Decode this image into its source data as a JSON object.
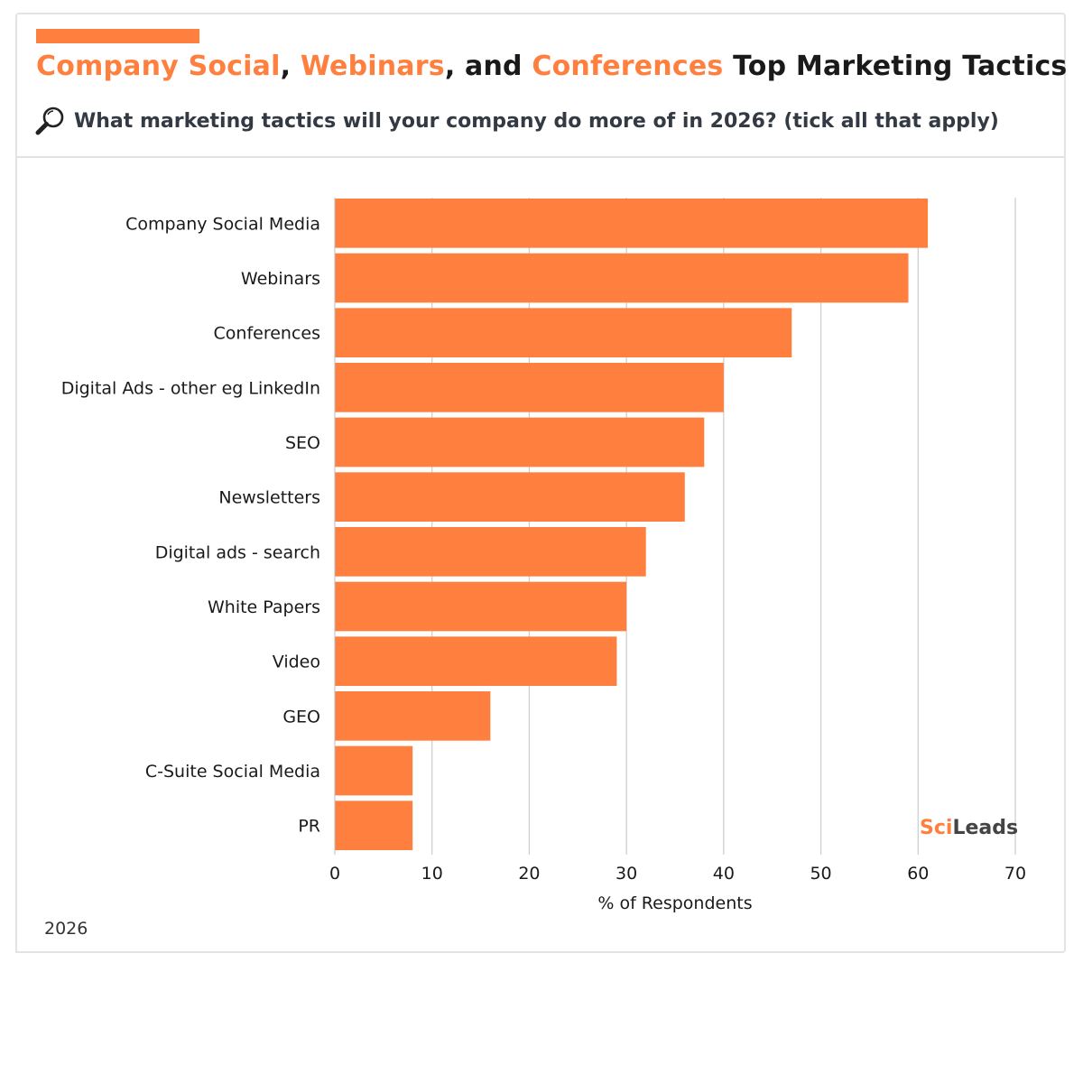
{
  "header": {
    "title_parts": [
      {
        "text": "Company Social",
        "accent": true
      },
      {
        "text": ", ",
        "accent": false
      },
      {
        "text": "Webinars",
        "accent": true
      },
      {
        "text": ", and ",
        "accent": false
      },
      {
        "text": "Conferences",
        "accent": true
      },
      {
        "text": " Top Marketing Tactics",
        "accent": false
      }
    ],
    "subtitle": "What marketing tactics will your company do more of in 2026? (tick all that apply)",
    "subtitle_icon": "magnifier-icon"
  },
  "colors": {
    "accent": "#ff7f3f",
    "bar": "#ff7f3f",
    "grid": "#cfcfcf",
    "text": "#1a1a1a"
  },
  "footer": {
    "year": "2026",
    "brand_part1": "Sci",
    "brand_part2": "Leads"
  },
  "chart_data": {
    "type": "bar",
    "orientation": "horizontal",
    "categories": [
      "Company Social Media",
      "Webinars",
      "Conferences",
      "Digital Ads - other eg LinkedIn",
      "SEO",
      "Newsletters",
      "Digital ads - search",
      "White Papers",
      "Video",
      "GEO",
      "C-Suite Social Media",
      "PR"
    ],
    "values": [
      61,
      59,
      47,
      40,
      38,
      36,
      32,
      30,
      29,
      16,
      8,
      8
    ],
    "xlabel": "% of Respondents",
    "ylabel": "",
    "xlim": [
      0,
      70
    ],
    "xticks": [
      0,
      10,
      20,
      30,
      40,
      50,
      60,
      70
    ],
    "grid": "vertical"
  }
}
